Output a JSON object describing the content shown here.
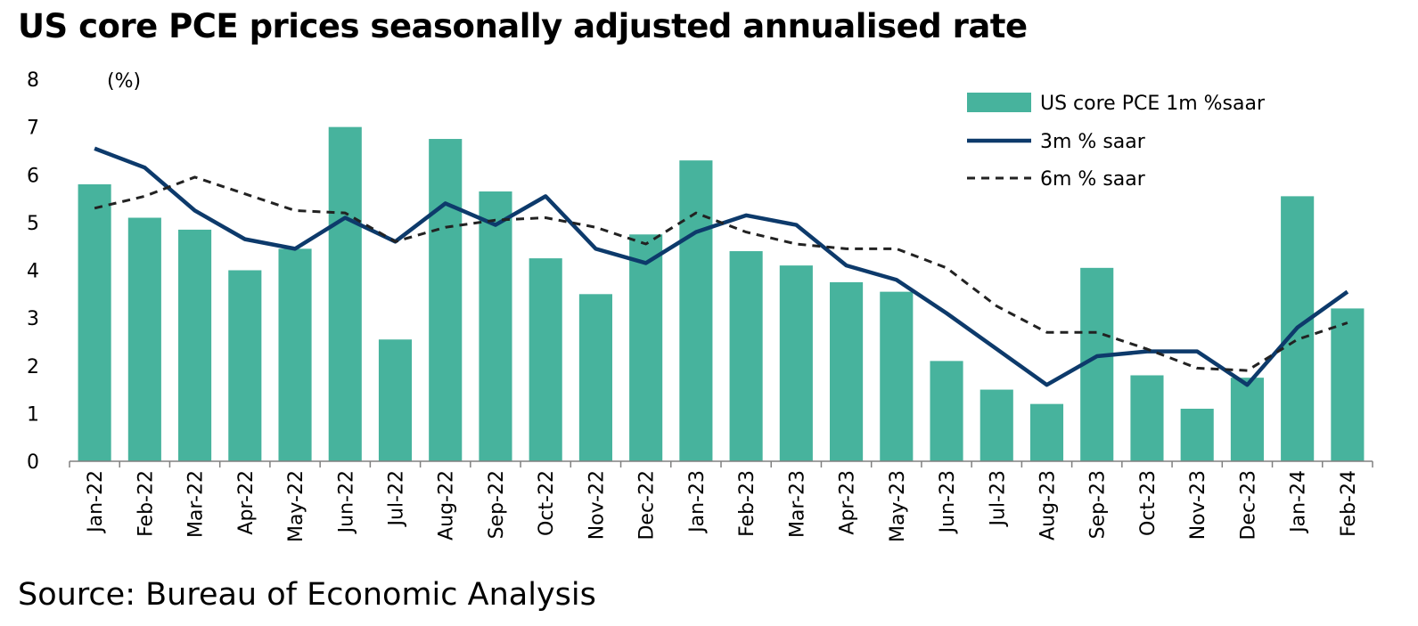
{
  "title": "US core PCE prices seasonally adjusted annualised rate",
  "source": "Source: Bureau of Economic Analysis",
  "colors": {
    "bar": "#47b39d",
    "line3m": "#0d3a6b",
    "line6m": "#222222",
    "axis": "#808080"
  },
  "chart_data": {
    "type": "bar",
    "title": "US core PCE prices seasonally adjusted annualised rate",
    "ylabel": "(%)",
    "xlabel": "",
    "ylim": [
      0,
      8
    ],
    "yticks": [
      0,
      1,
      2,
      3,
      4,
      5,
      6,
      7,
      8
    ],
    "grid": false,
    "legend_position": "top-right",
    "categories": [
      "Jan-22",
      "Feb-22",
      "Mar-22",
      "Apr-22",
      "May-22",
      "Jun-22",
      "Jul-22",
      "Aug-22",
      "Sep-22",
      "Oct-22",
      "Nov-22",
      "Dec-22",
      "Jan-23",
      "Feb-23",
      "Mar-23",
      "Apr-23",
      "May-23",
      "Jun-23",
      "Jul-23",
      "Aug-23",
      "Sep-23",
      "Oct-23",
      "Nov-23",
      "Dec-23",
      "Jan-24",
      "Feb-24"
    ],
    "series": [
      {
        "name": "US core PCE 1m %saar",
        "type": "bar",
        "values": [
          5.8,
          5.1,
          4.85,
          4.0,
          4.45,
          7.0,
          2.55,
          6.75,
          5.65,
          4.25,
          3.5,
          4.75,
          6.3,
          4.4,
          4.1,
          3.75,
          3.55,
          2.1,
          1.5,
          1.2,
          4.05,
          1.8,
          1.1,
          1.75,
          5.55,
          3.2
        ]
      },
      {
        "name": "3m % saar",
        "type": "line",
        "style": "solid",
        "values": [
          6.55,
          6.15,
          5.25,
          4.65,
          4.45,
          5.1,
          4.6,
          5.4,
          4.95,
          5.55,
          4.45,
          4.15,
          4.8,
          5.15,
          4.95,
          4.1,
          3.8,
          3.1,
          2.35,
          1.6,
          2.2,
          2.3,
          2.3,
          1.6,
          2.8,
          3.55
        ]
      },
      {
        "name": "6m % saar",
        "type": "line",
        "style": "dashed",
        "values": [
          5.3,
          5.55,
          5.95,
          5.6,
          5.25,
          5.2,
          4.6,
          4.9,
          5.05,
          5.1,
          4.9,
          4.55,
          5.2,
          4.8,
          4.55,
          4.45,
          4.45,
          4.05,
          3.25,
          2.7,
          2.7,
          2.35,
          1.95,
          1.9,
          2.55,
          2.9
        ]
      }
    ]
  }
}
